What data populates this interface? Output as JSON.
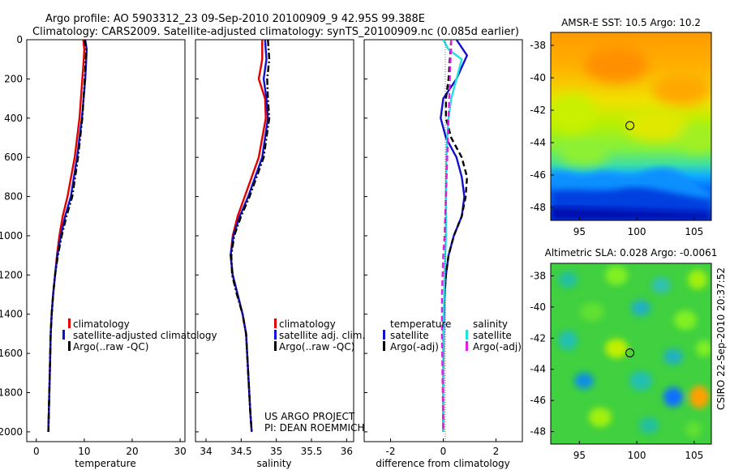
{
  "title": {
    "line1": "Argo profile: AO 5903312_23 09-Sep-2010 20100909_9 42.95S 99.388E",
    "line2": "Climatology: CARS2009. Satellite-adjusted climatology: synTS_20100909.nc (0.085d earlier)"
  },
  "side_label": "CSIRO 22-Sep-2010 20:37:52",
  "credit": {
    "line1": "US ARGO PROJECT",
    "line2": "PI: DEAN ROEMMICH"
  },
  "colors": {
    "red": "#e00000",
    "blue": "#1010d0",
    "black": "#000000",
    "cyan": "#20e0e0",
    "magenta": "#e020e0"
  },
  "chart_data": [
    {
      "type": "line",
      "xlabel": "temperature",
      "xlim": [
        -2,
        31
      ],
      "ylim": [
        0,
        2050
      ],
      "xticks": [
        0,
        10,
        20,
        30
      ],
      "yticks": [
        0,
        200,
        400,
        600,
        800,
        1000,
        1200,
        1400,
        1600,
        1800,
        2000
      ],
      "legend": [
        "climatology",
        "satellite-adjusted climatology",
        "Argo(..raw -QC)"
      ],
      "series": [
        {
          "name": "climatology",
          "color": "red",
          "dash": "solid",
          "x": [
            9.8,
            10.0,
            9.9,
            9.6,
            9.0,
            8.0,
            6.5,
            5.5,
            4.8,
            4.3,
            3.9,
            3.5,
            3.2,
            3.0,
            2.8,
            2.6,
            2.5
          ],
          "y": [
            0,
            50,
            100,
            200,
            400,
            600,
            800,
            900,
            1000,
            1100,
            1200,
            1300,
            1400,
            1500,
            1700,
            1900,
            2000
          ]
        },
        {
          "name": "satellite-adjusted climatology",
          "color": "blue",
          "dash": "solid",
          "x": [
            10.2,
            10.5,
            10.4,
            10.2,
            9.5,
            8.5,
            7.2,
            6.0,
            5.1,
            4.4,
            3.9,
            3.5,
            3.2,
            3.0,
            2.8,
            2.6,
            2.5
          ],
          "y": [
            0,
            50,
            100,
            200,
            400,
            600,
            800,
            900,
            1000,
            1100,
            1200,
            1300,
            1400,
            1500,
            1700,
            1900,
            2000
          ]
        },
        {
          "name": "Argo(..raw -QC)",
          "color": "black",
          "dash": "dashdot",
          "x": [
            10.1,
            10.4,
            10.3,
            10.1,
            9.6,
            8.7,
            7.5,
            6.3,
            5.3,
            4.5,
            3.9,
            3.5,
            3.2,
            3.0,
            2.8,
            2.6,
            2.5
          ],
          "y": [
            0,
            50,
            100,
            200,
            400,
            600,
            800,
            900,
            1000,
            1100,
            1200,
            1300,
            1400,
            1500,
            1700,
            1900,
            2000
          ]
        }
      ]
    },
    {
      "type": "line",
      "xlabel": "salinity",
      "xlim": [
        33.85,
        36.1
      ],
      "ylim": [
        0,
        2050
      ],
      "xticks": [
        34,
        34.5,
        35,
        35.5,
        36
      ],
      "legend": [
        "climatology",
        "satellite adj. clim.",
        "Argo(..raw -QC)"
      ],
      "series": [
        {
          "name": "climatology",
          "color": "red",
          "dash": "solid",
          "x": [
            34.8,
            34.8,
            34.75,
            34.84,
            34.85,
            34.75,
            34.55,
            34.45,
            34.38,
            34.35,
            34.38,
            34.45,
            34.52,
            34.57,
            34.6,
            34.63,
            34.65
          ],
          "y": [
            0,
            100,
            200,
            300,
            400,
            600,
            800,
            900,
            1000,
            1100,
            1200,
            1300,
            1400,
            1500,
            1700,
            1900,
            2000
          ]
        },
        {
          "name": "satellite adj. clim.",
          "color": "blue",
          "dash": "solid",
          "x": [
            34.84,
            34.86,
            34.82,
            34.86,
            34.88,
            34.8,
            34.6,
            34.48,
            34.39,
            34.35,
            34.38,
            34.45,
            34.52,
            34.57,
            34.6,
            34.63,
            34.65
          ],
          "y": [
            0,
            100,
            200,
            300,
            400,
            600,
            800,
            900,
            1000,
            1100,
            1200,
            1300,
            1400,
            1500,
            1700,
            1900,
            2000
          ]
        },
        {
          "name": "Argo(..raw -QC)",
          "color": "black",
          "dash": "dashdot",
          "x": [
            34.88,
            34.9,
            34.87,
            34.88,
            34.9,
            34.82,
            34.62,
            34.5,
            34.4,
            34.36,
            34.37,
            34.44,
            34.52,
            34.57,
            34.6,
            34.63,
            34.65
          ],
          "y": [
            0,
            100,
            200,
            300,
            400,
            600,
            800,
            900,
            1000,
            1100,
            1200,
            1300,
            1400,
            1500,
            1700,
            1900,
            2000
          ]
        }
      ]
    },
    {
      "type": "line",
      "xlabel": "difference from climatology",
      "xlim": [
        -3,
        3
      ],
      "ylim": [
        0,
        2050
      ],
      "xticks": [
        -2,
        0,
        2
      ],
      "legend_groups": [
        {
          "title": "temperature",
          "items": [
            "satellite",
            "Argo(-adj)"
          ]
        },
        {
          "title": "salinity",
          "items": [
            "satellite",
            "Argo(-adj)"
          ]
        }
      ],
      "series": [
        {
          "name": "satellite",
          "group": "temperature",
          "color": "blue",
          "dash": "solid",
          "x": [
            0.5,
            0.9,
            0.5,
            0.0,
            -0.1,
            0.1,
            0.5,
            0.7,
            0.8,
            0.7,
            0.4,
            0.2,
            0.1,
            0.05,
            0.02,
            0.0,
            0.0,
            0.0
          ],
          "y": [
            0,
            80,
            200,
            300,
            400,
            500,
            600,
            700,
            800,
            900,
            1000,
            1100,
            1200,
            1300,
            1500,
            1700,
            1900,
            2000
          ]
        },
        {
          "name": "Argo(-adj)",
          "group": "temperature",
          "color": "black",
          "dash": "dashed",
          "x": [
            0.3,
            0.2,
            0.1,
            0.1,
            0.3,
            0.7,
            0.9,
            0.85,
            0.7,
            0.4,
            0.2,
            0.1,
            0.05,
            0.0,
            0.0,
            0.0
          ],
          "y": [
            0,
            200,
            300,
            400,
            500,
            600,
            700,
            800,
            900,
            1000,
            1100,
            1200,
            1300,
            1500,
            1800,
            2000
          ]
        },
        {
          "name": "satellite",
          "group": "salinity",
          "color": "cyan",
          "dash": "solid",
          "x": [
            0.0,
            0.2,
            0.7,
            0.3,
            0.2,
            0.15,
            0.12,
            0.1,
            0.1,
            0.05,
            0.02,
            0.0,
            0.0,
            0.0
          ],
          "y": [
            0,
            50,
            100,
            300,
            400,
            500,
            600,
            800,
            1000,
            1200,
            1400,
            1600,
            1800,
            2000
          ]
        },
        {
          "name": "Argo(-adj)",
          "group": "salinity",
          "color": "magenta",
          "dash": "dashed",
          "x": [
            0.3,
            0.25,
            0.2,
            0.15,
            0.1,
            0.05,
            0.0,
            -0.05,
            -0.05,
            0.0
          ],
          "y": [
            0,
            200,
            400,
            600,
            800,
            1000,
            1100,
            1300,
            1500,
            2000
          ]
        }
      ]
    },
    {
      "type": "heatmap",
      "title": "AMSR-E SST: 10.5 Argo: 10.2",
      "xlim": [
        92.5,
        106.5
      ],
      "ylim": [
        -48.8,
        -37.2
      ],
      "xticks": [
        95,
        100,
        105
      ],
      "yticks": [
        -38,
        -40,
        -42,
        -44,
        -46,
        -48
      ],
      "marker": {
        "x": 99.4,
        "y": -42.95
      }
    },
    {
      "type": "heatmap",
      "title": "Altimetric SLA: 0.028 Argo: -0.0061",
      "xlim": [
        92.5,
        106.5
      ],
      "ylim": [
        -48.8,
        -37.2
      ],
      "xticks": [
        95,
        100,
        105
      ],
      "yticks": [
        -38,
        -40,
        -42,
        -44,
        -46,
        -48
      ],
      "marker": {
        "x": 99.4,
        "y": -42.95
      }
    }
  ]
}
